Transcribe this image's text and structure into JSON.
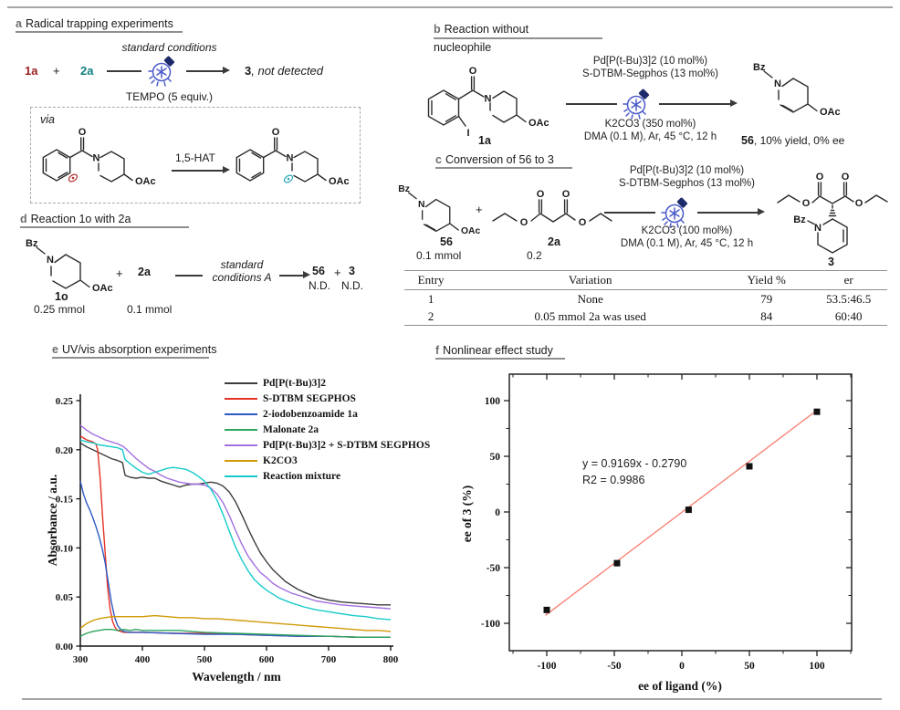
{
  "colors": {
    "rule_gray": "#a6a6a6",
    "bulb_blue": "#4a5ac9",
    "bulb_dark": "#1c2a6b",
    "radical_red": "#b03030",
    "radical_teal": "#2aa8b8",
    "label_red": "#9b1f1f",
    "label_teal": "#0e7f7f",
    "fit_line": "#f97d70"
  },
  "panel_a": {
    "letter": "a",
    "title": "Radical trapping experiments",
    "reactant1": "1a",
    "plus": "+",
    "reactant2": "2a",
    "arrow_top": "standard conditions",
    "arrow_bottom": "TEMPO (5 equiv.)",
    "product": "3",
    "product_note": ", not detected",
    "via": "via",
    "hat": "1,5-HAT",
    "left": {
      "o": "O",
      "n": "N",
      "oac": "OAc"
    },
    "right": {
      "o": "O",
      "n": "N",
      "oac": "OAc"
    }
  },
  "panel_b": {
    "letter": "b",
    "title": "Reaction without",
    "title2": "nucleophile",
    "cond1": "Pd[P(t-Bu)3]2 (10 mol%)",
    "cond2": "S-DTBM-Segphos (13 mol%)",
    "cond3": "K2CO3 (350 mol%)",
    "cond4": "DMA (0.1 M), Ar, 45 °C, 12 h",
    "sm": {
      "o": "O",
      "n": "N",
      "oac": "OAc",
      "i": "I",
      "name": "1a"
    },
    "prod": {
      "bz": "Bz",
      "n": "N",
      "oac": "OAc",
      "name": "56",
      "note": ", 10% yield, 0% ee"
    }
  },
  "panel_c": {
    "letter": "c",
    "title": "Conversion of 56 to 3",
    "s56": {
      "bz": "Bz",
      "n": "N",
      "oac": "OAc",
      "name": "56",
      "amount": "0.1 mmol"
    },
    "plus": "+",
    "s2a": {
      "o_top1": "O",
      "o_top2": "O",
      "o_chain1": "O",
      "o_chain2": "O",
      "name": "2a",
      "amount": "0.2"
    },
    "cond1": "Pd[P(t-Bu)3]2 (10 mol%)",
    "cond2": "S-DTBM-Segphos (13 mol%)",
    "cond3": "K2CO3 (100 mol%)",
    "cond4": "DMA (0.1 M), Ar, 45 °C, 12 h",
    "prod": {
      "o_top1": "O",
      "o_top2": "O",
      "o_chain1": "O",
      "o_chain2": "O",
      "bz": "Bz",
      "n": "N",
      "name": "3"
    },
    "table": {
      "headers": [
        "Entry",
        "Variation",
        "Yield %",
        "er"
      ],
      "rows": [
        [
          "1",
          "None",
          "79",
          "53.5:46.5"
        ],
        [
          "2",
          "0.05 mmol 2a was used",
          "84",
          "60:40"
        ]
      ]
    }
  },
  "panel_d": {
    "letter": "d",
    "title": "Reaction 1o with 2a",
    "sm": {
      "bz": "Bz",
      "n": "N",
      "oac": "OAc",
      "name": "1o",
      "amount": "0.25 mmol"
    },
    "plus": "+",
    "reactant2": "2a",
    "amount2": "0.1 mmol",
    "cond_line1": "standard",
    "cond_line2": "conditions A",
    "p1": "56",
    "p1_nd": "N.D.",
    "plus2": "+",
    "p2": "3",
    "p2_nd": "N.D."
  },
  "panel_e": {
    "letter": "e",
    "title": "UV/vis absorption experiments"
  },
  "panel_f": {
    "letter": "f",
    "title": "Nonlinear effect study"
  },
  "chart_data": [
    {
      "type": "line",
      "title": "UV/vis absorption experiments",
      "xlabel": "Wavelength / nm",
      "ylabel": "Absorbance / a.u.",
      "xlim": [
        300,
        800
      ],
      "ylim": [
        0,
        0.25
      ],
      "xticks": [
        300,
        400,
        500,
        600,
        700,
        800
      ],
      "xtick_labels": [
        "300",
        "400",
        "500",
        "600",
        "700",
        "800"
      ],
      "yticks": [
        0,
        0.05,
        0.1,
        0.15,
        0.2,
        0.25
      ],
      "ytick_labels": [
        "0.00",
        "0.05",
        "0.10",
        "0.15",
        "0.20",
        "0.25"
      ],
      "grid": false,
      "legend_position": "top-right",
      "series": [
        {
          "name": "Pd[P(t-Bu)3]2",
          "color": "#3d3d3d",
          "x": [
            300,
            310,
            320,
            330,
            340,
            350,
            360,
            368,
            372,
            380,
            390,
            400,
            410,
            420,
            430,
            440,
            450,
            460,
            470,
            480,
            490,
            500,
            510,
            520,
            530,
            540,
            550,
            560,
            570,
            580,
            590,
            600,
            610,
            620,
            630,
            640,
            650,
            660,
            680,
            700,
            720,
            740,
            760,
            780,
            800
          ],
          "y": [
            0.207,
            0.203,
            0.2,
            0.197,
            0.194,
            0.191,
            0.189,
            0.187,
            0.174,
            0.172,
            0.171,
            0.172,
            0.171,
            0.171,
            0.168,
            0.166,
            0.164,
            0.162,
            0.164,
            0.165,
            0.165,
            0.166,
            0.167,
            0.166,
            0.163,
            0.157,
            0.147,
            0.134,
            0.12,
            0.107,
            0.095,
            0.086,
            0.078,
            0.072,
            0.066,
            0.062,
            0.058,
            0.055,
            0.05,
            0.047,
            0.045,
            0.044,
            0.043,
            0.042,
            0.042
          ]
        },
        {
          "name": "S-DTBM SEGPHOS",
          "color": "#e63327",
          "x": [
            300,
            305,
            310,
            315,
            320,
            325,
            328,
            332,
            336,
            340,
            344,
            348,
            352,
            356,
            360,
            370,
            380,
            400,
            450,
            500,
            550,
            600,
            650,
            700,
            750,
            800
          ],
          "y": [
            0.214,
            0.212,
            0.21,
            0.209,
            0.208,
            0.206,
            0.2,
            0.17,
            0.13,
            0.095,
            0.06,
            0.038,
            0.025,
            0.019,
            0.016,
            0.014,
            0.014,
            0.014,
            0.013,
            0.013,
            0.012,
            0.011,
            0.01,
            0.01,
            0.009,
            0.009
          ]
        },
        {
          "name": "2-iodobenzoamide 1a",
          "color": "#2d59c4",
          "x": [
            300,
            305,
            310,
            315,
            320,
            325,
            330,
            335,
            340,
            345,
            350,
            355,
            360,
            365,
            370,
            380,
            400,
            450,
            500,
            550,
            600,
            650,
            700,
            750,
            800
          ],
          "y": [
            0.168,
            0.155,
            0.146,
            0.139,
            0.131,
            0.122,
            0.112,
            0.1,
            0.085,
            0.065,
            0.045,
            0.03,
            0.021,
            0.017,
            0.015,
            0.014,
            0.014,
            0.013,
            0.012,
            0.012,
            0.011,
            0.01,
            0.01,
            0.009,
            0.009
          ]
        },
        {
          "name": "Malonate 2a",
          "color": "#2fa45c",
          "x": [
            300,
            310,
            320,
            330,
            340,
            350,
            360,
            370,
            380,
            390,
            400,
            420,
            440,
            460,
            480,
            500,
            550,
            600,
            650,
            700,
            750,
            800
          ],
          "y": [
            0.01,
            0.013,
            0.015,
            0.016,
            0.017,
            0.017,
            0.016,
            0.017,
            0.016,
            0.017,
            0.016,
            0.016,
            0.016,
            0.016,
            0.015,
            0.014,
            0.013,
            0.012,
            0.011,
            0.01,
            0.009,
            0.009
          ]
        },
        {
          "name": "Pd[P(t-Bu)3]2 + S-DTBM SEGPHOS",
          "color": "#a46fe0",
          "x": [
            300,
            310,
            320,
            330,
            340,
            350,
            360,
            370,
            375,
            380,
            390,
            400,
            410,
            420,
            430,
            440,
            450,
            460,
            470,
            480,
            490,
            500,
            510,
            520,
            530,
            540,
            550,
            560,
            570,
            580,
            590,
            600,
            610,
            620,
            630,
            640,
            650,
            660,
            680,
            700,
            720,
            740,
            760,
            780,
            800
          ],
          "y": [
            0.225,
            0.22,
            0.216,
            0.213,
            0.21,
            0.208,
            0.206,
            0.203,
            0.2,
            0.197,
            0.191,
            0.186,
            0.181,
            0.178,
            0.174,
            0.171,
            0.169,
            0.167,
            0.166,
            0.165,
            0.165,
            0.164,
            0.161,
            0.155,
            0.146,
            0.133,
            0.118,
            0.104,
            0.092,
            0.083,
            0.075,
            0.07,
            0.064,
            0.06,
            0.057,
            0.054,
            0.052,
            0.05,
            0.046,
            0.044,
            0.042,
            0.041,
            0.04,
            0.039,
            0.038
          ]
        },
        {
          "name": "K2CO3",
          "color": "#d09a06",
          "x": [
            300,
            310,
            320,
            330,
            340,
            350,
            360,
            380,
            400,
            420,
            440,
            460,
            480,
            500,
            520,
            540,
            560,
            580,
            600,
            620,
            640,
            660,
            680,
            700,
            720,
            740,
            760,
            780,
            800
          ],
          "y": [
            0.018,
            0.023,
            0.026,
            0.028,
            0.029,
            0.03,
            0.03,
            0.03,
            0.03,
            0.031,
            0.03,
            0.029,
            0.029,
            0.028,
            0.028,
            0.027,
            0.026,
            0.025,
            0.024,
            0.023,
            0.022,
            0.021,
            0.02,
            0.019,
            0.018,
            0.017,
            0.016,
            0.016,
            0.015
          ]
        },
        {
          "name": "Reaction mixture",
          "color": "#17cbcb",
          "x": [
            300,
            310,
            320,
            330,
            340,
            350,
            360,
            368,
            372,
            380,
            390,
            400,
            410,
            420,
            430,
            440,
            450,
            460,
            470,
            480,
            490,
            500,
            510,
            520,
            530,
            540,
            550,
            560,
            570,
            580,
            590,
            600,
            620,
            640,
            660,
            680,
            700,
            720,
            740,
            760,
            780,
            800
          ],
          "y": [
            0.21,
            0.208,
            0.207,
            0.205,
            0.204,
            0.203,
            0.202,
            0.2,
            0.19,
            0.186,
            0.181,
            0.177,
            0.175,
            0.177,
            0.179,
            0.181,
            0.182,
            0.181,
            0.18,
            0.177,
            0.173,
            0.168,
            0.16,
            0.149,
            0.134,
            0.117,
            0.101,
            0.088,
            0.077,
            0.068,
            0.062,
            0.057,
            0.049,
            0.044,
            0.04,
            0.037,
            0.035,
            0.033,
            0.031,
            0.03,
            0.028,
            0.027
          ]
        }
      ]
    },
    {
      "type": "scatter",
      "title": "Nonlinear effect study",
      "xlabel": "ee of ligand (%)",
      "ylabel": "ee of 3 (%)",
      "xlim": [
        -127,
        127
      ],
      "ylim": [
        -125,
        125
      ],
      "xticks": [
        -100,
        -50,
        0,
        50,
        100
      ],
      "xtick_labels": [
        "-100",
        "-50",
        "0",
        "50",
        "100"
      ],
      "yticks": [
        -100,
        -50,
        0,
        50,
        100
      ],
      "ytick_labels": [
        "-100",
        "-50",
        "0",
        "50",
        "100"
      ],
      "grid": false,
      "points": [
        [
          -100,
          -88
        ],
        [
          -48,
          -46
        ],
        [
          5,
          2
        ],
        [
          50,
          41
        ],
        [
          100,
          90
        ]
      ],
      "fit": {
        "slope": 0.9169,
        "intercept": -0.279,
        "x_range": [
          -101,
          101
        ],
        "color": "#f97d70"
      },
      "annotation_line1": "y = 0.9169x - 0.2790",
      "annotation_line2": "R2 = 0.9986"
    }
  ]
}
